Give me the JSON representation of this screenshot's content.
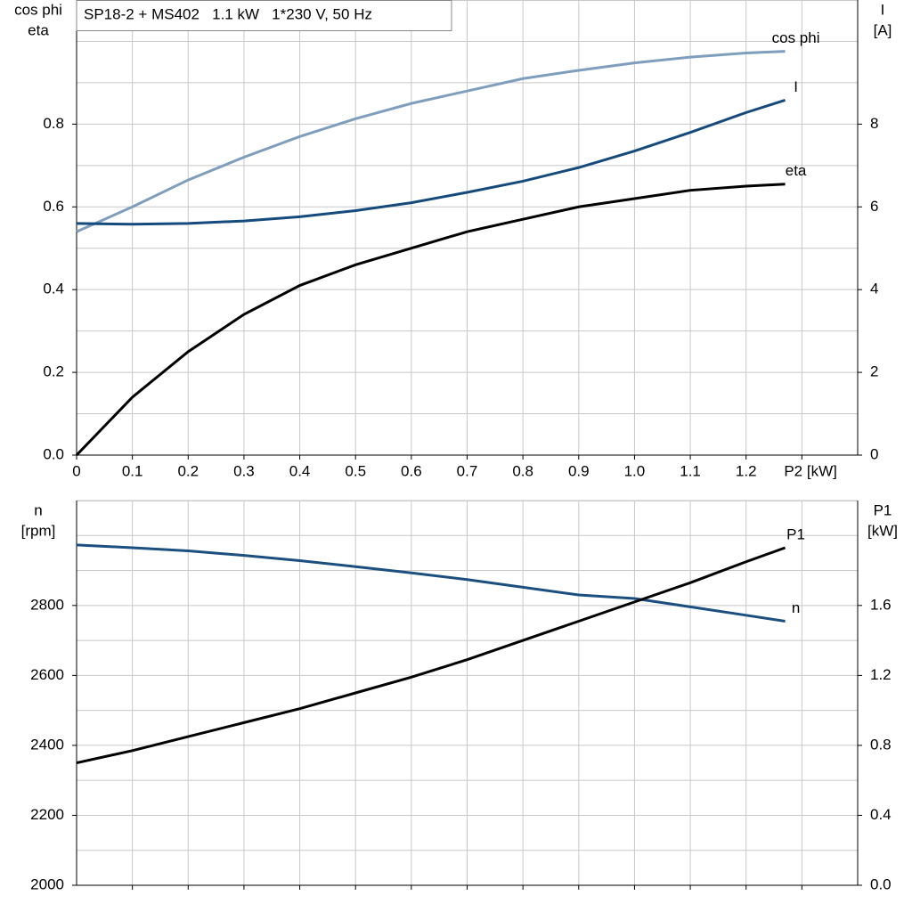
{
  "chart_data": [
    {
      "type": "line",
      "title": "SP18-2 + MS402   1.1 kW   1*230 V, 50 Hz",
      "ylabel": [
        "cos phi",
        "eta"
      ],
      "y2label": [
        "I",
        "[A]"
      ],
      "x": [
        0,
        0.1,
        0.2,
        0.3,
        0.4,
        0.5,
        0.6,
        0.7,
        0.8,
        0.9,
        1.0,
        1.1,
        1.2,
        1.27
      ],
      "xlim": [
        0,
        1.4
      ],
      "xticks": [
        {
          "value": 0,
          "label": "0"
        },
        0.1,
        0.2,
        0.3,
        0.4,
        0.5,
        0.6,
        0.7,
        0.8,
        0.9,
        {
          "value": 1,
          "label": "1.0"
        },
        1.1,
        1.2,
        {
          "value": 1.3,
          "label": "P2 [kW]"
        }
      ],
      "ylim": [
        0,
        1.1
      ],
      "yticks": [
        {
          "value": 0,
          "label": "0.0"
        },
        0.2,
        0.4,
        0.6,
        0.8
      ],
      "yminorticks": [
        0.1,
        0.3,
        0.5,
        0.7,
        0.9,
        1.0,
        1.1
      ],
      "y2lim": [
        0,
        11
      ],
      "y2ticks": [
        0,
        2,
        4,
        6,
        8
      ],
      "grid": true,
      "series": [
        {
          "name": "cos phi",
          "color": "#7f9ebd",
          "values": [
            0.54,
            0.6,
            0.665,
            0.72,
            0.77,
            0.813,
            0.85,
            0.88,
            0.91,
            0.93,
            0.948,
            0.962,
            0.972,
            0.976
          ]
        },
        {
          "name": "I",
          "color": "#154a7d",
          "axis": "y2",
          "values": [
            5.6,
            5.58,
            5.6,
            5.66,
            5.76,
            5.91,
            6.1,
            6.35,
            6.62,
            6.95,
            7.35,
            7.8,
            8.28,
            8.58
          ]
        },
        {
          "name": "eta",
          "color": "#000000",
          "values": [
            0,
            0.14,
            0.25,
            0.34,
            0.41,
            0.46,
            0.5,
            0.54,
            0.57,
            0.6,
            0.62,
            0.64,
            0.65,
            0.655
          ]
        }
      ]
    },
    {
      "type": "line",
      "ylabel": [
        "n",
        "[rpm]"
      ],
      "y2label": [
        "P1",
        "[kW]"
      ],
      "x": [
        0,
        0.1,
        0.2,
        0.3,
        0.4,
        0.5,
        0.6,
        0.7,
        0.8,
        0.9,
        1.0,
        1.1,
        1.2,
        1.27
      ],
      "xlim": [
        0,
        1.4
      ],
      "xgrid": [
        0.1,
        0.2,
        0.3,
        0.4,
        0.5,
        0.6,
        0.7,
        0.8,
        0.9,
        1.0,
        1.1,
        1.2,
        1.3
      ],
      "ylim": [
        2000,
        3100
      ],
      "yticks": [
        2000,
        2200,
        2400,
        2600,
        2800
      ],
      "yminorticks": [
        2100,
        2300,
        2500,
        2700,
        2900,
        3000,
        3100
      ],
      "y2lim": [
        0,
        2.2
      ],
      "y2ticks": [
        {
          "value": 0,
          "label": "0.0"
        },
        0.4,
        0.8,
        1.2,
        1.6
      ],
      "grid": true,
      "series": [
        {
          "name": "n",
          "color": "#1b4f80",
          "values": [
            2973,
            2965,
            2956,
            2943,
            2928,
            2911,
            2893,
            2874,
            2852,
            2830,
            2820,
            2796,
            2772,
            2755
          ]
        },
        {
          "name": "P1",
          "color": "#000000",
          "axis": "y2",
          "values": [
            0.7,
            0.77,
            0.85,
            0.93,
            1.01,
            1.1,
            1.19,
            1.29,
            1.4,
            1.51,
            1.62,
            1.73,
            1.85,
            1.93
          ]
        }
      ]
    }
  ]
}
